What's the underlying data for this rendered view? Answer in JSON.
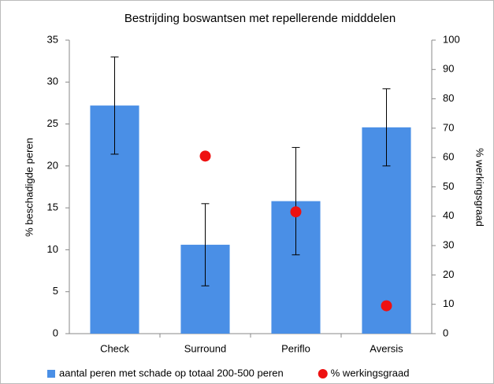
{
  "chart_data": {
    "type": "bar",
    "title": "Bestrijding boswantsen met repellerende midddelen",
    "categories": [
      "Check",
      "Surround",
      "Periflo",
      "Aversis"
    ],
    "series": [
      {
        "name": "aantal peren met schade op totaal 200-500 peren",
        "type": "bar",
        "color": "#4a8fe6",
        "values": [
          27.2,
          10.6,
          15.8,
          24.6
        ],
        "errors": [
          5.8,
          4.9,
          6.4,
          4.6
        ]
      },
      {
        "name": "% werkingsgraad",
        "type": "scatter",
        "color": "#ee1111",
        "axis": "y2",
        "values": [
          null,
          60.5,
          41.5,
          9.5
        ]
      }
    ],
    "ylabel": "% beschadigde peren",
    "y2label": "% werkingsgraad",
    "ylim": [
      0,
      35
    ],
    "yticks": [
      0,
      5,
      10,
      15,
      20,
      25,
      30,
      35
    ],
    "y2lim": [
      0,
      100
    ],
    "y2ticks": [
      0,
      10,
      20,
      30,
      40,
      50,
      60,
      70,
      80,
      90,
      100
    ],
    "grid": false,
    "legend": "bottom"
  }
}
